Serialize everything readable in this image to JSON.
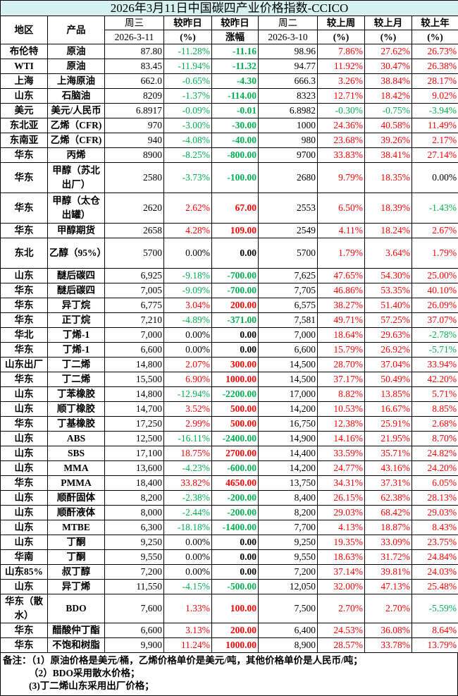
{
  "title": "2026年3月11日中国碳四产业价格指数-CCICO",
  "header": {
    "region": "地区",
    "product": "产品",
    "cur_day": "周三",
    "cur_date": "2026-3-11",
    "pct_day_1": "较昨日",
    "pct_day_2": "(%)",
    "chg_1": "较昨日",
    "chg_2": "涨幅",
    "prev_day": "周二",
    "prev_date": "2026-3-10",
    "wk_1": "较上周",
    "wk_2": "(%)",
    "mo_1": "较上月",
    "mo_2": "(%)",
    "yr_1": "较上年",
    "yr_2": "(%)"
  },
  "colors": {
    "up": "#ff0000",
    "down": "#00b050",
    "title_bg": "#d6f1f1"
  },
  "rows": [
    {
      "region": "布伦特",
      "product": "原油",
      "cur": "87.80",
      "pct": "-11.28%",
      "chg": "-11.16",
      "prev": "98.96",
      "wk": "7.86%",
      "mo": "27.62%",
      "yr": "26.73%"
    },
    {
      "region": "WTI",
      "product": "原油",
      "cur": "83.45",
      "pct": "-11.94%",
      "chg": "-11.32",
      "prev": "94.77",
      "wk": "11.92%",
      "mo": "30.47%",
      "yr": "26.38%"
    },
    {
      "region": "上海",
      "product": "上海原油",
      "cur": "662.0",
      "pct": "-0.65%",
      "chg": "-4.30",
      "prev": "666.3",
      "wk": "3.26%",
      "mo": "38.84%",
      "yr": "28.17%"
    },
    {
      "region": "山东",
      "product": "石脑油",
      "cur": "8209",
      "pct": "-1.37%",
      "chg": "-114.00",
      "prev": "8323",
      "wk": "12.71%",
      "mo": "18.42%",
      "yr": "9.02%"
    },
    {
      "region": "美元",
      "product": "美元/人民币",
      "cur": "6.8917",
      "pct": "-0.09%",
      "chg": "-0.01",
      "prev": "6.8982",
      "wk": "-0.30%",
      "mo": "-0.75%",
      "yr": "-3.94%"
    },
    {
      "region": "东北亚",
      "product": "乙烯（CFR)",
      "cur": "970",
      "pct": "-3.00%",
      "chg": "-30.00",
      "prev": "1000",
      "wk": "24.36%",
      "mo": "40.58%",
      "yr": "11.49%"
    },
    {
      "region": "东南亚",
      "product": "乙烯（CFR)",
      "cur": "940",
      "pct": "-4.08%",
      "chg": "-40.00",
      "prev": "980",
      "wk": "23.68%",
      "mo": "39.26%",
      "yr": "2.17%"
    },
    {
      "region": "华东",
      "product": "丙烯",
      "cur": "8900",
      "pct": "-8.25%",
      "chg": "-800.00",
      "prev": "9700",
      "wk": "33.83%",
      "mo": "38.41%",
      "yr": "27.14%"
    },
    {
      "region": "华东",
      "product": "甲醇（苏北出厂）",
      "cur": "2580",
      "pct": "-3.73%",
      "chg": "-100.00",
      "prev": "2680",
      "wk": "9.79%",
      "mo": "18.35%",
      "yr": "0.00%",
      "tall": true
    },
    {
      "region": "华东",
      "product": "甲醇（太仓出罐）",
      "cur": "2620",
      "pct": "2.62%",
      "chg": "67.00",
      "prev": "2553",
      "wk": "6.50%",
      "mo": "18.39%",
      "yr": "-1.43%",
      "tall": true
    },
    {
      "region": "华东",
      "product": "甲醇期货",
      "cur": "2658",
      "pct": "4.28%",
      "chg": "109.00",
      "prev": "2549",
      "wk": "4.11%",
      "mo": "18.24%",
      "yr": "2.67%"
    },
    {
      "region": "东北",
      "product": "乙醇（95%）",
      "cur": "5700",
      "pct": "0.00%",
      "chg": "0.00",
      "prev": "5700",
      "wk": "1.79%",
      "mo": "3.64%",
      "yr": "1.79%",
      "tall": true
    },
    {
      "region": "山东",
      "product": "醚后碳四",
      "cur": "6,925",
      "pct": "-9.18%",
      "chg": "-700.00",
      "prev": "7,625",
      "wk": "47.65%",
      "mo": "54.30%",
      "yr": "25.00%"
    },
    {
      "region": "华东",
      "product": "醚后碳四",
      "cur": "7,005",
      "pct": "-9.09%",
      "chg": "-700.00",
      "prev": "7,705",
      "wk": "46.86%",
      "mo": "53.35%",
      "yr": "40.10%"
    },
    {
      "region": "华东",
      "product": "异丁烷",
      "cur": "6,775",
      "pct": "3.04%",
      "chg": "200.00",
      "prev": "6,575",
      "wk": "38.27%",
      "mo": "51.40%",
      "yr": "26.09%"
    },
    {
      "region": "华东",
      "product": "正丁烷",
      "cur": "7,210",
      "pct": "-4.89%",
      "chg": "-371.00",
      "prev": "7,581",
      "wk": "49.71%",
      "mo": "57.25%",
      "yr": "37.07%"
    },
    {
      "region": "华北",
      "product": "丁烯-1",
      "cur": "7,000",
      "pct": "0.00%",
      "chg": "0.00",
      "prev": "7,000",
      "wk": "18.64%",
      "mo": "29.63%",
      "yr": "-2.78%"
    },
    {
      "region": "华东",
      "product": "丁烯-1",
      "cur": "6,600",
      "pct": "0.00%",
      "chg": "0.00",
      "prev": "6,600",
      "wk": "15.79%",
      "mo": "26.92%",
      "yr": "-5.71%"
    },
    {
      "region": "山东出厂",
      "product": "丁二烯",
      "cur": "14,800",
      "pct": "2.07%",
      "chg": "300.00",
      "prev": "14,500",
      "wk": "28.70%",
      "mo": "37.04%",
      "yr": "33.94%"
    },
    {
      "region": "华东",
      "product": "丁二烯",
      "cur": "15,500",
      "pct": "6.90%",
      "chg": "1000.00",
      "prev": "14,500",
      "wk": "37.17%",
      "mo": "50.49%",
      "yr": "42.20%"
    },
    {
      "region": "山东",
      "product": "丁苯橡胶",
      "cur": "14,800",
      "pct": "-12.94%",
      "chg": "-2200.00",
      "prev": "17,000",
      "wk": "8.82%",
      "mo": "13.85%",
      "yr": "5.71%"
    },
    {
      "region": "山东",
      "product": "顺丁橡胶",
      "cur": "14,700",
      "pct": "3.52%",
      "chg": "500.00",
      "prev": "14,200",
      "wk": "10.53%",
      "mo": "16.67%",
      "yr": "8.85%"
    },
    {
      "region": "华东",
      "product": "丁基橡胶",
      "cur": "17,250",
      "pct": "2.99%",
      "chg": "500.00",
      "prev": "16,750",
      "wk": "12.38%",
      "mo": "25.91%",
      "yr": "2.68%"
    },
    {
      "region": "山东",
      "product": "ABS",
      "cur": "12,500",
      "pct": "-16.11%",
      "chg": "-2400.00",
      "prev": "14,900",
      "wk": "14.16%",
      "mo": "21.95%",
      "yr": "8.70%"
    },
    {
      "region": "山东",
      "product": "SBS",
      "cur": "17,100",
      "pct": "18.75%",
      "chg": "2700.00",
      "prev": "14,400",
      "wk": "33.59%",
      "mo": "35.71%",
      "yr": "24.82%"
    },
    {
      "region": "山东",
      "product": "MMA",
      "cur": "13,600",
      "pct": "-4.23%",
      "chg": "-600.00",
      "prev": "14,200",
      "wk": "24.77%",
      "mo": "43.16%",
      "yr": "24.20%"
    },
    {
      "region": "华东",
      "product": "PMMA",
      "cur": "18,400",
      "pct": "33.82%",
      "chg": "4650.00",
      "prev": "13,750",
      "wk": "34.31%",
      "mo": "37.31%",
      "yr": "6.05%"
    },
    {
      "region": "山东",
      "product": "顺酐固体",
      "cur": "8,200",
      "pct": "-2.38%",
      "chg": "-200.00",
      "prev": "8,400",
      "wk": "26.15%",
      "mo": "62.38%",
      "yr": "28.13%"
    },
    {
      "region": "山东",
      "product": "顺酐液体",
      "cur": "8,000",
      "pct": "-2.44%",
      "chg": "-200.00",
      "prev": "8,200",
      "wk": "29.03%",
      "mo": "68.42%",
      "yr": "29.03%"
    },
    {
      "region": "山东",
      "product": "MTBE",
      "cur": "6,300",
      "pct": "-18.18%",
      "chg": "-1400.00",
      "prev": "7,700",
      "wk": "4.13%",
      "mo": "18.87%",
      "yr": "8.43%"
    },
    {
      "region": "山东",
      "product": "丁酮",
      "cur": "9,250",
      "pct": "0.00%",
      "chg": "0.00",
      "prev": "9,250",
      "wk": "19.35%",
      "mo": "33.09%",
      "yr": "23.75%"
    },
    {
      "region": "华南",
      "product": "丁酮",
      "cur": "9,550",
      "pct": "0.00%",
      "chg": "0.00",
      "prev": "9,550",
      "wk": "18.63%",
      "mo": "31.72%",
      "yr": "24.84%"
    },
    {
      "region": "山东85%",
      "product": "叔丁醇",
      "cur": "7,200",
      "pct": "0.00%",
      "chg": "0.00",
      "prev": "7,200",
      "wk": "37.14%",
      "mo": "39.81%",
      "yr": "24.03%"
    },
    {
      "region": "山东",
      "product": "异丁烯",
      "cur": "11,550",
      "pct": "-4.15%",
      "chg": "-500.00",
      "prev": "12,050",
      "wk": "32.00%",
      "mo": "47.13%",
      "yr": "25.48%"
    },
    {
      "region": "华东（散水）",
      "product": "BDO",
      "cur": "7,600",
      "pct": "1.33%",
      "chg": "100.00",
      "prev": "7,500",
      "wk": "2.70%",
      "mo": "2.70%",
      "yr": "-5.59%",
      "mid": true
    },
    {
      "region": "华东",
      "product": "醋酸仲丁酯",
      "cur": "6,600",
      "pct": "3.13%",
      "chg": "200.00",
      "prev": "6,400",
      "wk": "24.53%",
      "mo": "36.08%",
      "yr": "8.64%"
    },
    {
      "region": "华东",
      "product": "不饱和树脂",
      "cur": "9,900",
      "pct": "11.24%",
      "chg": "1000.00",
      "prev": "8,900",
      "wk": "28.57%",
      "mo": "33.78%",
      "yr": "13.79%"
    }
  ],
  "notes": [
    "备注：（1）原油价格是美元/桶，乙烯价格单价是美元/吨，其他价格单价是人民币/吨；",
    "（2）BDO采用散水价格；",
    "(3)丁二烯山东采用出厂价格；"
  ]
}
